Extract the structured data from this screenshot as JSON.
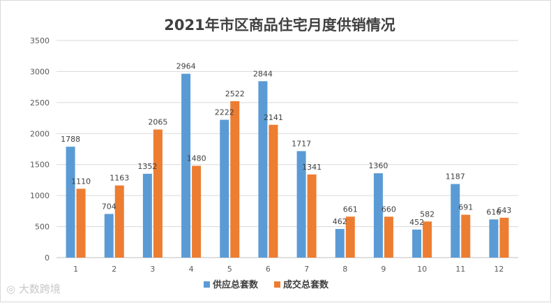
{
  "watermark": "大数跨境",
  "chart_data": {
    "type": "bar",
    "title": "2021年市区商品住宅月度供销情况",
    "categories": [
      "1",
      "2",
      "3",
      "4",
      "5",
      "6",
      "7",
      "8",
      "9",
      "10",
      "11",
      "12"
    ],
    "series": [
      {
        "name": "供应总套数",
        "color": "#5b9bd5",
        "values": [
          1788,
          704,
          1352,
          2964,
          2222,
          2844,
          1717,
          462,
          1360,
          452,
          1187,
          616
        ]
      },
      {
        "name": "成交总套数",
        "color": "#ed7d31",
        "values": [
          1110,
          1163,
          2065,
          1480,
          2522,
          2141,
          1341,
          661,
          660,
          582,
          691,
          643
        ]
      }
    ],
    "ylim": [
      0,
      3500
    ],
    "yticks": [
      0,
      500,
      1000,
      1500,
      2000,
      2500,
      3000,
      3500
    ],
    "grid": true,
    "legend": "bottom",
    "xlabel": "",
    "ylabel": ""
  }
}
